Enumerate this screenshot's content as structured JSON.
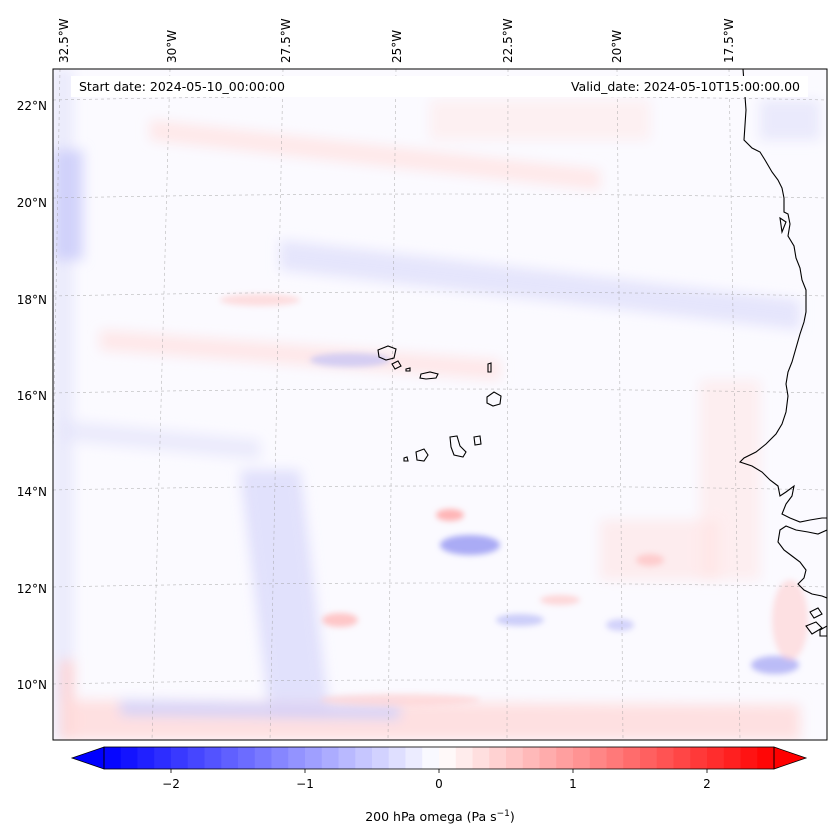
{
  "map": {
    "start_date": "Start date: 2024-05-10_00:00:00",
    "valid_date": "Valid_date: 2024-05-10T15:00:00.00",
    "lon_labels": [
      "32.5°W",
      "30°W",
      "27.5°W",
      "25°W",
      "22.5°W",
      "20°W",
      "17.5°W"
    ],
    "lat_labels": [
      "22°N",
      "20°N",
      "18°N",
      "16°N",
      "14°N",
      "12°N",
      "10°N"
    ],
    "colors": {
      "negative": "#0000ff",
      "zero": "#ffffff",
      "positive": "#ff0000",
      "coastline": "#000000",
      "gridline": "#9a9a9a"
    }
  },
  "colorbar": {
    "label": "200 hPa omega (Pa s",
    "label_superscript": "−1",
    "label_suffix": ")",
    "ticks": [
      "−2",
      "−1",
      "0",
      "1",
      "2"
    ],
    "tick_values": [
      -2,
      -1,
      0,
      1,
      2
    ],
    "range": [
      -2.5,
      2.5
    ]
  }
}
